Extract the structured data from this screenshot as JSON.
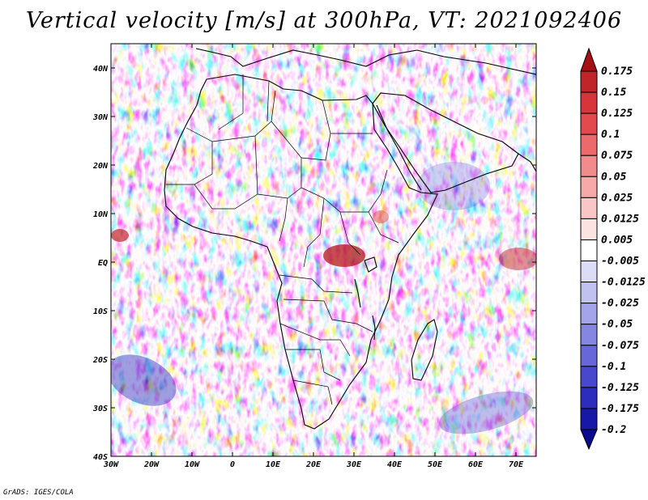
{
  "title": "Vertical velocity [m/s] at 300hPa, VT: 2021092406",
  "credit": "GrADS: IGES/COLA",
  "map": {
    "lon_range": [
      -30,
      75
    ],
    "lat_range": [
      -40,
      45
    ],
    "lat_ticks": [
      {
        "value": 40,
        "label": "40N"
      },
      {
        "value": 30,
        "label": "30N"
      },
      {
        "value": 20,
        "label": "20N"
      },
      {
        "value": 10,
        "label": "10N"
      },
      {
        "value": 0,
        "label": "EQ"
      },
      {
        "value": -10,
        "label": "10S"
      },
      {
        "value": -20,
        "label": "20S"
      },
      {
        "value": -30,
        "label": "30S"
      },
      {
        "value": -40,
        "label": "40S"
      }
    ],
    "lon_ticks": [
      {
        "value": -30,
        "label": "30W"
      },
      {
        "value": -20,
        "label": "20W"
      },
      {
        "value": -10,
        "label": "10W"
      },
      {
        "value": 0,
        "label": "0"
      },
      {
        "value": 10,
        "label": "10E"
      },
      {
        "value": 20,
        "label": "20E"
      },
      {
        "value": 30,
        "label": "30E"
      },
      {
        "value": 40,
        "label": "40E"
      },
      {
        "value": 50,
        "label": "50E"
      },
      {
        "value": 60,
        "label": "60E"
      },
      {
        "value": 70,
        "label": "70E"
      }
    ]
  },
  "colorbar": {
    "labels": [
      "0.175",
      "0.15",
      "0.125",
      "0.1",
      "0.075",
      "0.05",
      "0.025",
      "0.0125",
      "0.005",
      "-0.005",
      "-0.0125",
      "-0.025",
      "-0.05",
      "-0.075",
      "-0.1",
      "-0.125",
      "-0.175",
      "-0.2"
    ],
    "colors": [
      "#a50f15",
      "#c0252a",
      "#d7353a",
      "#e34a4d",
      "#ec6a6b",
      "#f28b8b",
      "#f6a9a8",
      "#f9c6c5",
      "#fde2e2",
      "#ffffff",
      "#dcdcf7",
      "#c2c2f0",
      "#a4a4ea",
      "#8585e2",
      "#6767da",
      "#4848cf",
      "#2d2dbd",
      "#1818a8",
      "#0a0a90"
    ]
  },
  "colors": {
    "land_outline": "#000000",
    "background": "#ffffff"
  }
}
